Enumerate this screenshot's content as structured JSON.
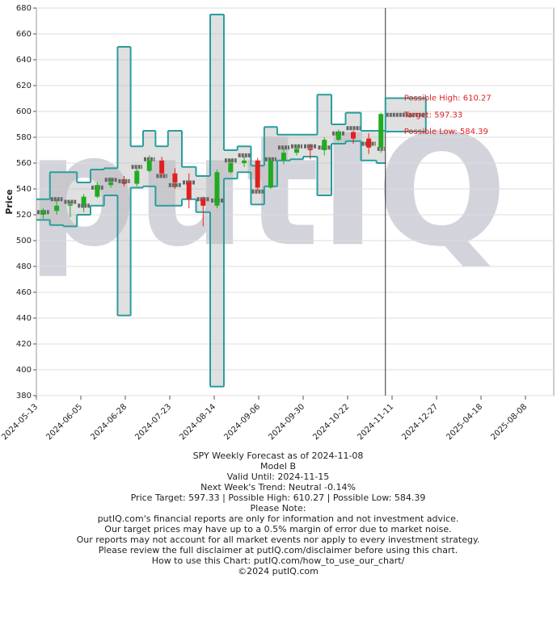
{
  "chart_data": {
    "type": "candlestick",
    "y_label": "Price",
    "watermark": "putIQ",
    "ylim": [
      380,
      680
    ],
    "yticks": [
      380,
      400,
      420,
      440,
      460,
      480,
      500,
      520,
      540,
      560,
      580,
      600,
      620,
      640,
      660,
      680
    ],
    "xticks": [
      "2024-05-13",
      "2024-06-05",
      "2024-06-28",
      "2024-07-23",
      "2024-08-14",
      "2024-09-06",
      "2024-09-30",
      "2024-10-22",
      "2024-11-11",
      "2024-12-27",
      "2025-04-18",
      "2025-08-08"
    ],
    "grid": true,
    "up_color": "#22aa22",
    "down_color": "#e02020",
    "band_color": "#2a9d9d",
    "target_color": "#666666",
    "marker_date": "2024-11-08",
    "x": [
      "2024-05-13",
      "2024-05-20",
      "2024-05-27",
      "2024-06-03",
      "2024-06-10",
      "2024-06-17",
      "2024-06-24",
      "2024-07-01",
      "2024-07-08",
      "2024-07-15",
      "2024-07-22",
      "2024-07-29",
      "2024-08-05",
      "2024-08-12",
      "2024-08-19",
      "2024-08-26",
      "2024-09-02",
      "2024-09-09",
      "2024-09-16",
      "2024-09-23",
      "2024-09-30",
      "2024-10-07",
      "2024-10-14",
      "2024-10-21",
      "2024-10-28",
      "2024-11-04"
    ],
    "open": [
      520,
      523,
      527,
      528,
      534,
      543,
      545,
      544,
      554,
      562,
      552,
      545,
      532,
      527,
      553,
      560,
      562,
      541,
      562,
      568,
      571,
      570,
      578,
      584,
      579,
      572
    ],
    "high": [
      525,
      532,
      530,
      536,
      545,
      549,
      550,
      556,
      566,
      565,
      556,
      552,
      534,
      555,
      563,
      565,
      564,
      564,
      571,
      574,
      575,
      580,
      586,
      585,
      583,
      599
    ],
    "low": [
      517,
      520,
      518,
      522,
      533,
      541,
      542,
      542,
      553,
      550,
      540,
      525,
      511,
      525,
      552,
      557,
      539,
      540,
      559,
      566,
      563,
      566,
      577,
      575,
      567,
      568
    ],
    "close": [
      523,
      527,
      528,
      534,
      543,
      545,
      544,
      554,
      562,
      552,
      545,
      532,
      527,
      553,
      560,
      562,
      541,
      562,
      568,
      571,
      570,
      578,
      584,
      579,
      572,
      598
    ],
    "upper": [
      532,
      553,
      553,
      545,
      555,
      556,
      650,
      573,
      585,
      573,
      585,
      557,
      550,
      675,
      570,
      573,
      558,
      588,
      582,
      582,
      582,
      613,
      590,
      599,
      585,
      585
    ],
    "lower": [
      516,
      512,
      511,
      520,
      527,
      535,
      442,
      541,
      542,
      527,
      527,
      532,
      522,
      387,
      548,
      553,
      528,
      542,
      562,
      563,
      565,
      535,
      575,
      577,
      562,
      560
    ],
    "target": [
      522,
      532,
      530,
      527,
      541,
      547,
      546,
      557,
      563,
      550,
      543,
      545,
      532,
      531,
      562,
      566,
      538,
      563,
      572,
      573,
      573,
      572,
      583,
      587,
      575,
      571
    ],
    "forecast": {
      "values": [
        610.27,
        597.33,
        584.39
      ],
      "value_labels": [
        "Possible High: 610.27",
        "Target: 597.33",
        "Possible Low: 584.39"
      ],
      "color": "#e02020"
    },
    "notes": [
      "SPY Weekly Forecast as of 2024-11-08",
      "Model B",
      "Valid Until: 2024-11-15",
      "Next Week's Trend: Neutral -0.14%",
      "Price Target: 597.33 | Possible High: 610.27 | Possible Low: 584.39",
      "Please Note:",
      "putIQ.com's financial reports are only for information and not investment advice.",
      "Our target prices may have up to a 0.5% margin of error due to market noise.",
      "Our reports may not account for all market events nor apply to every investment strategy.",
      "Please review the full disclaimer at putIQ.com/disclaimer before using this chart.",
      "How to use this Chart: putIQ.com/how_to_use_our_chart/",
      "©2024 putIQ.com"
    ]
  }
}
